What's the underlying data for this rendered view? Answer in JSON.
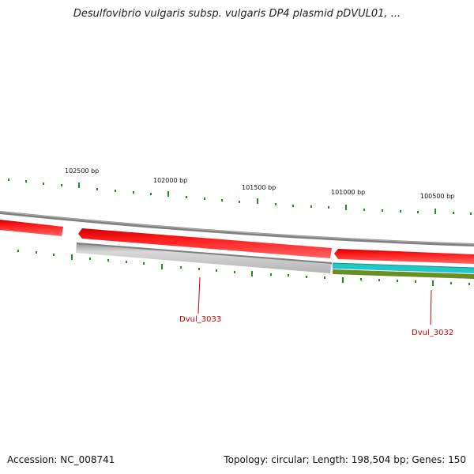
{
  "title": "Desulfovibrio vulgaris subsp. vulgaris DP4 plasmid pDVUL01, ...",
  "footer": {
    "accession": "Accession: NC_008741",
    "summary": "Topology: circular; Length: 198,504 bp; Genes: 150"
  },
  "ticks": {
    "labels": [
      "102500 bp",
      "102000 bp",
      "101500 bp",
      "101000 bp",
      "100500 bp"
    ]
  },
  "genes": {
    "dvul_3033": "Dvul_3033",
    "dvul_3032": "Dvul_3032"
  },
  "colors": {
    "forward_cds": "#ff0000",
    "reverse_gray": "#bfbfbf",
    "backbone": "#808080",
    "cyan_feature": "#20c8c8",
    "olive_feature": "#6b8e23",
    "tick_green": "#228b22",
    "label_red": "#cc0000"
  }
}
